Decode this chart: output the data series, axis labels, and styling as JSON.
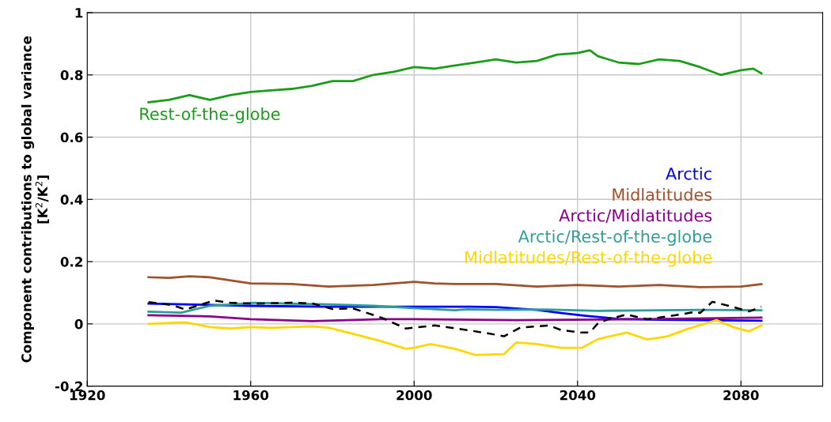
{
  "chart_data": {
    "type": "line",
    "ylabel": "Component contributions to global variance\n[K$^{2}$/K$^{2}$]",
    "xlim": [
      1920,
      2100
    ],
    "ylim": [
      -0.2,
      1
    ],
    "xticks": [
      1920,
      1960,
      2000,
      2040,
      2080
    ],
    "yticks": [
      {
        "value": -0.2,
        "label": "-0.2"
      },
      0,
      0.2,
      0.4,
      0.6,
      0.8,
      1
    ],
    "grid": true,
    "marker": "none",
    "series": [
      {
        "name": "Rest-of-the-globe",
        "color": "#1a9e1a",
        "x": [
          1935,
          1940,
          1945,
          1950,
          1955,
          1960,
          1965,
          1970,
          1975,
          1980,
          1985,
          1990,
          1995,
          2000,
          2005,
          2010,
          2015,
          2020,
          2025,
          2030,
          2035,
          2040,
          2043,
          2045,
          2050,
          2055,
          2060,
          2065,
          2070,
          2075,
          2080,
          2083,
          2085
        ],
        "values": [
          0.712,
          0.72,
          0.735,
          0.72,
          0.735,
          0.745,
          0.75,
          0.755,
          0.765,
          0.78,
          0.78,
          0.8,
          0.81,
          0.825,
          0.82,
          0.83,
          0.84,
          0.85,
          0.84,
          0.845,
          0.865,
          0.87,
          0.879,
          0.86,
          0.84,
          0.835,
          0.85,
          0.845,
          0.825,
          0.8,
          0.815,
          0.82,
          0.805
        ]
      },
      {
        "name": "Arctic",
        "color": "#0000ff",
        "x": [
          1935,
          1960,
          1979,
          1998,
          2014,
          2020,
          2030,
          2036,
          2042,
          2050,
          2060,
          2085
        ],
        "values": [
          0.065,
          0.058,
          0.055,
          0.055,
          0.055,
          0.054,
          0.045,
          0.035,
          0.026,
          0.016,
          0.013,
          0.01
        ]
      },
      {
        "name": "Midlatitudes",
        "color": "#a0522d",
        "x": [
          1935,
          1940,
          1945,
          1950,
          1960,
          1970,
          1979,
          1990,
          2000,
          2005,
          2010,
          2020,
          2030,
          2040,
          2050,
          2060,
          2070,
          2080,
          2085
        ],
        "values": [
          0.15,
          0.148,
          0.153,
          0.15,
          0.13,
          0.128,
          0.12,
          0.125,
          0.135,
          0.13,
          0.128,
          0.128,
          0.12,
          0.125,
          0.12,
          0.125,
          0.118,
          0.12,
          0.128
        ]
      },
      {
        "name": "Arctic/Midlatitudes",
        "color": "#8b008b",
        "x": [
          1935,
          1950,
          1960,
          1975,
          1992,
          2000,
          2025,
          2045,
          2060,
          2085
        ],
        "values": [
          0.028,
          0.024,
          0.015,
          0.009,
          0.015,
          0.015,
          0.012,
          0.014,
          0.016,
          0.02
        ]
      },
      {
        "name": "Arctic/Rest-of-the-globe",
        "color": "#2e9e98",
        "x": [
          1935,
          1943,
          1950,
          1955,
          1961,
          1970,
          1979,
          1990,
          1998,
          2010,
          2013,
          2020,
          2032,
          2045,
          2055,
          2070,
          2085
        ],
        "values": [
          0.039,
          0.036,
          0.058,
          0.062,
          0.068,
          0.065,
          0.063,
          0.058,
          0.052,
          0.044,
          0.047,
          0.045,
          0.046,
          0.042,
          0.043,
          0.045,
          0.044
        ]
      },
      {
        "name": "Midlatitudes/Rest-of-the-globe",
        "color": "#ffd700",
        "x": [
          1935,
          1940,
          1944,
          1950,
          1955,
          1960,
          1965,
          1970,
          1975,
          1979,
          1985,
          1992,
          1998,
          2000,
          2004,
          2010,
          2015,
          2022,
          2025,
          2030,
          2036,
          2041,
          2045,
          2052,
          2057,
          2062,
          2067,
          2072,
          2074,
          2078,
          2082,
          2085
        ],
        "values": [
          0.0,
          0.003,
          0.005,
          -0.01,
          -0.015,
          -0.01,
          -0.013,
          -0.01,
          -0.008,
          -0.012,
          -0.032,
          -0.056,
          -0.08,
          -0.077,
          -0.065,
          -0.08,
          -0.1,
          -0.097,
          -0.06,
          -0.065,
          -0.077,
          -0.077,
          -0.049,
          -0.028,
          -0.05,
          -0.04,
          -0.016,
          0.004,
          0.012,
          -0.01,
          -0.024,
          -0.005
        ]
      },
      {
        "color": "#000000",
        "line_style": "dashed",
        "x": [
          1935,
          1941,
          1944,
          1951,
          1955,
          1961,
          1970,
          1975,
          1980,
          1985,
          1992,
          1998,
          2005,
          2013,
          2018,
          2022,
          2026,
          2033,
          2036,
          2041,
          2043,
          2045,
          2048,
          2052,
          2057,
          2064,
          2069,
          2070,
          2073,
          2077,
          2082,
          2085
        ],
        "values": [
          0.07,
          0.06,
          0.046,
          0.075,
          0.068,
          0.065,
          0.068,
          0.066,
          0.048,
          0.05,
          0.02,
          -0.015,
          -0.005,
          -0.02,
          -0.03,
          -0.04,
          -0.012,
          -0.005,
          -0.02,
          -0.028,
          -0.028,
          0.002,
          0.017,
          0.03,
          0.015,
          0.028,
          0.039,
          0.035,
          0.071,
          0.058,
          0.04,
          0.055
        ]
      }
    ]
  }
}
